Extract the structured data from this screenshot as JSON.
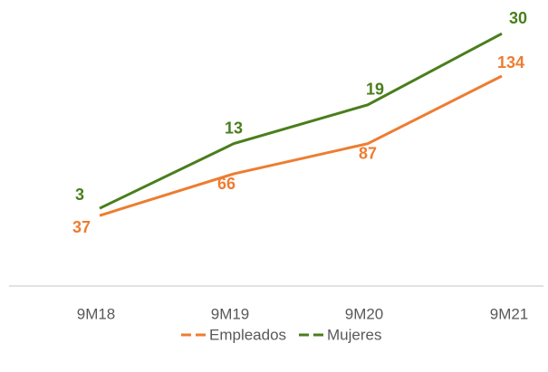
{
  "chart_data": {
    "type": "line",
    "categories": [
      "9M18",
      "9M19",
      "9M20",
      "9M21"
    ],
    "series": [
      {
        "name": "Empleados",
        "color": "#ed7d31",
        "values": [
          37,
          66,
          87,
          134
        ]
      },
      {
        "name": "Mujeres",
        "color": "#4a7e1c",
        "values": [
          3,
          13,
          19,
          30
        ],
        "axis": "y2"
      }
    ],
    "ylim": [
      -12,
      168
    ],
    "y2lim": [
      -9,
      31
    ],
    "legend": "bottom"
  }
}
